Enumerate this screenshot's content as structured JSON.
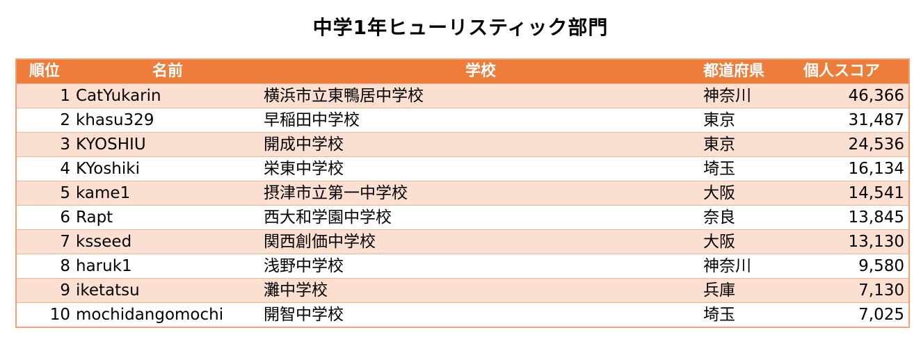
{
  "title": "中学1年ヒューリスティック部門",
  "table": {
    "headers": {
      "rank": "順位",
      "name": "名前",
      "school": "学校",
      "prefecture": "都道府県",
      "score": "個人スコア"
    },
    "rows": [
      {
        "rank": "1",
        "name": "CatYukarin",
        "school": "横浜市立東鴨居中学校",
        "prefecture": "神奈川",
        "score": "46,366"
      },
      {
        "rank": "2",
        "name": "khasu329",
        "school": "早稲田中学校",
        "prefecture": "東京",
        "score": "31,487"
      },
      {
        "rank": "3",
        "name": "KYOSHIU",
        "school": "開成中学校",
        "prefecture": "東京",
        "score": "24,536"
      },
      {
        "rank": "4",
        "name": "KYoshiki",
        "school": "栄東中学校",
        "prefecture": "埼玉",
        "score": "16,134"
      },
      {
        "rank": "5",
        "name": "kame1",
        "school": "摂津市立第一中学校",
        "prefecture": "大阪",
        "score": "14,541"
      },
      {
        "rank": "6",
        "name": "Rapt",
        "school": "西大和学園中学校",
        "prefecture": "奈良",
        "score": "13,845"
      },
      {
        "rank": "7",
        "name": "ksseed",
        "school": "関西創価中学校",
        "prefecture": "大阪",
        "score": "13,130"
      },
      {
        "rank": "8",
        "name": "haruk1",
        "school": "浅野中学校",
        "prefecture": "神奈川",
        "score": "9,580"
      },
      {
        "rank": "9",
        "name": "iketatsu",
        "school": "灘中学校",
        "prefecture": "兵庫",
        "score": "7,130"
      },
      {
        "rank": "10",
        "name": "mochidangomochi",
        "school": "開智中学校",
        "prefecture": "埼玉",
        "score": "7,025"
      }
    ]
  },
  "colors": {
    "header_bg": "#ee7d3b",
    "header_text": "#ffffff",
    "row_band": "#fbe0d2",
    "border": "#f2a27a"
  }
}
